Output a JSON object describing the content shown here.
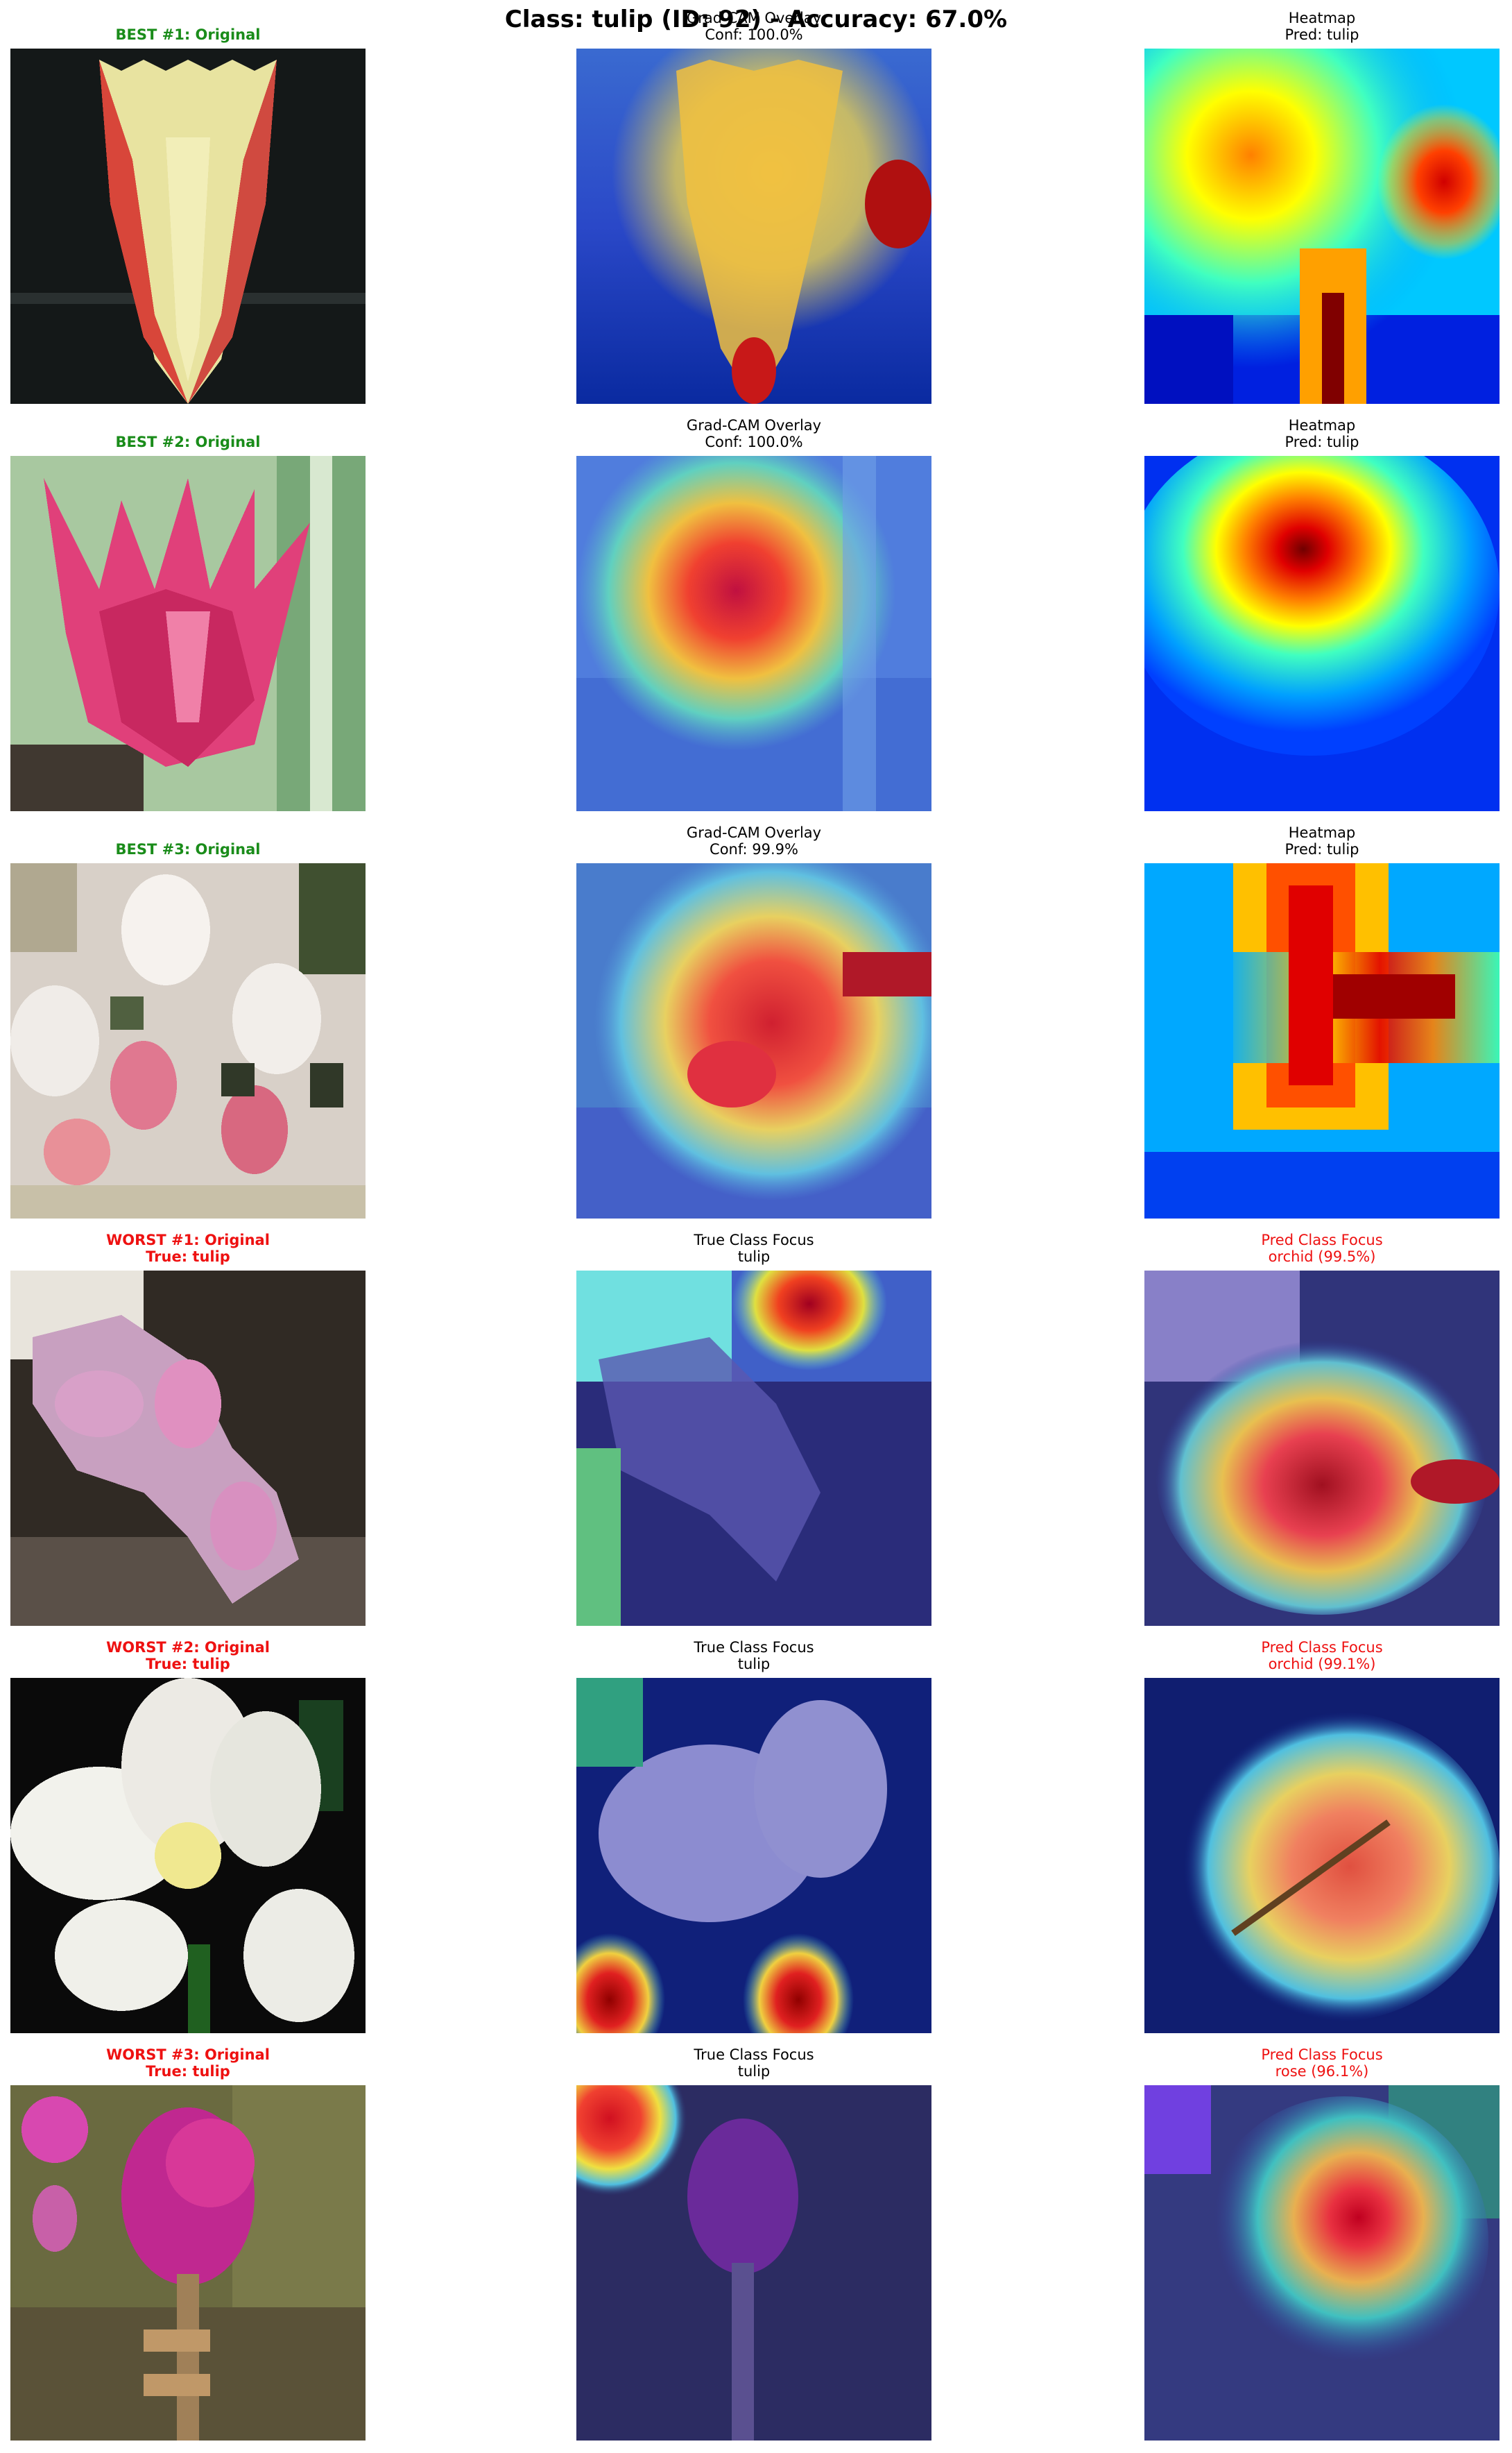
{
  "title": "Class: tulip (ID: 92) - Accuracy: 67.0%",
  "rows": [
    {
      "kind": "best",
      "original": {
        "line1": "BEST #1: Original",
        "line2": ""
      },
      "middle": {
        "line1": "Grad-CAM Overlay",
        "line2": "Conf: 100.0%"
      },
      "right": {
        "line1": "Heatmap",
        "line2": "Pred: tulip"
      }
    },
    {
      "kind": "best",
      "original": {
        "line1": "BEST #2: Original",
        "line2": ""
      },
      "middle": {
        "line1": "Grad-CAM Overlay",
        "line2": "Conf: 100.0%"
      },
      "right": {
        "line1": "Heatmap",
        "line2": "Pred: tulip"
      }
    },
    {
      "kind": "best",
      "original": {
        "line1": "BEST #3: Original",
        "line2": ""
      },
      "middle": {
        "line1": "Grad-CAM Overlay",
        "line2": "Conf: 99.9%"
      },
      "right": {
        "line1": "Heatmap",
        "line2": "Pred: tulip"
      }
    },
    {
      "kind": "worst",
      "original": {
        "line1": "WORST #1: Original",
        "line2": "True: tulip"
      },
      "middle": {
        "line1": "True Class Focus",
        "line2": "tulip"
      },
      "right": {
        "line1": "Pred Class Focus",
        "line2": "orchid (99.5%)"
      }
    },
    {
      "kind": "worst",
      "original": {
        "line1": "WORST #2: Original",
        "line2": "True: tulip"
      },
      "middle": {
        "line1": "True Class Focus",
        "line2": "tulip"
      },
      "right": {
        "line1": "Pred Class Focus",
        "line2": "orchid (99.1%)"
      }
    },
    {
      "kind": "worst",
      "original": {
        "line1": "WORST #3: Original",
        "line2": "True: tulip"
      },
      "middle": {
        "line1": "True Class Focus",
        "line2": "tulip"
      },
      "right": {
        "line1": "Pred Class Focus",
        "line2": "rose (96.1%)"
      }
    }
  ]
}
